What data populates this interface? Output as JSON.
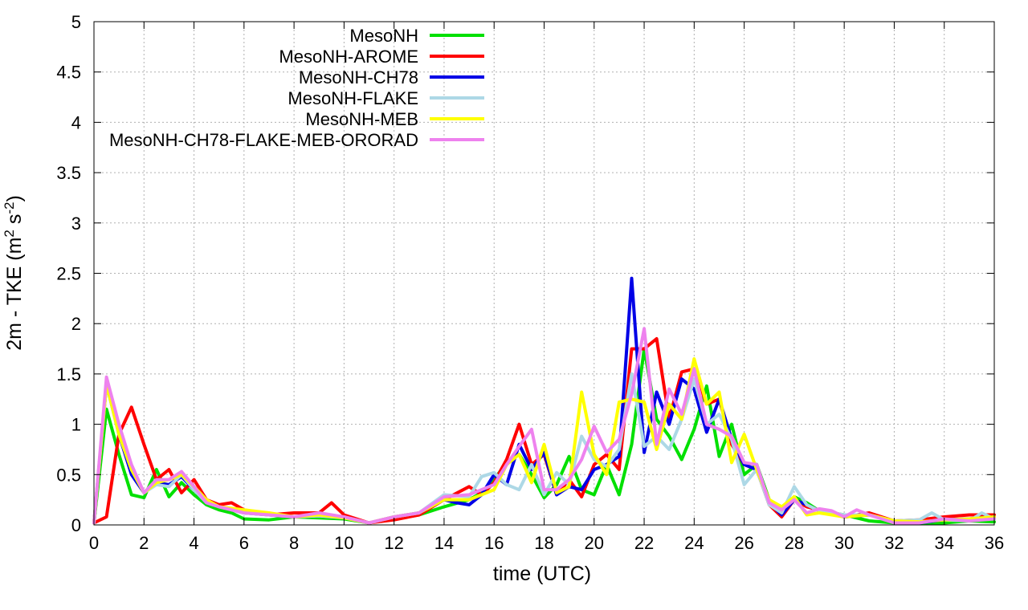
{
  "chart_data": {
    "type": "line",
    "xlabel": "time (UTC)",
    "ylabel": "2m - TKE (m² s⁻²)",
    "ylabel_parts": {
      "pre": "2m - TKE (m",
      "sup1": "2",
      "mid": " s",
      "sup2": "-2",
      "post": ")"
    },
    "xlim": [
      0,
      36
    ],
    "ylim": [
      0,
      5
    ],
    "x_ticks": [
      0,
      2,
      4,
      6,
      8,
      10,
      12,
      14,
      16,
      18,
      20,
      22,
      24,
      26,
      28,
      30,
      32,
      34,
      36
    ],
    "y_ticks": [
      0,
      0.5,
      1,
      1.5,
      2,
      2.5,
      3,
      3.5,
      4,
      4.5,
      5
    ],
    "y_tick_labels": [
      "0",
      "0.5",
      "1",
      "1.5",
      "2",
      "2.5",
      "3",
      "3.5",
      "4",
      "4.5",
      "5"
    ],
    "grid": true,
    "legend_position": "top-left-inside",
    "series": [
      {
        "name": "MesoNH",
        "color": "#00e000",
        "x": [
          0,
          0.5,
          1,
          1.5,
          2,
          2.5,
          3,
          3.5,
          4,
          4.5,
          5,
          5.5,
          6,
          7,
          8,
          9,
          10,
          11,
          12,
          13,
          14,
          15,
          15.5,
          16,
          16.5,
          17,
          17.5,
          18,
          18.5,
          19,
          19.5,
          20,
          20.5,
          21,
          21.5,
          22,
          22.5,
          23,
          23.5,
          24,
          24.5,
          25,
          25.5,
          26,
          26.5,
          27,
          27.5,
          28,
          28.5,
          29,
          30,
          31,
          32,
          33,
          34,
          35,
          36
        ],
        "y": [
          0.02,
          1.15,
          0.7,
          0.3,
          0.27,
          0.55,
          0.28,
          0.42,
          0.3,
          0.2,
          0.15,
          0.12,
          0.06,
          0.05,
          0.08,
          0.07,
          0.06,
          0.02,
          0.06,
          0.1,
          0.18,
          0.25,
          0.32,
          0.45,
          0.62,
          0.7,
          0.5,
          0.27,
          0.4,
          0.68,
          0.35,
          0.3,
          0.6,
          0.3,
          0.8,
          1.75,
          1.05,
          0.88,
          0.65,
          0.95,
          1.38,
          0.68,
          1.0,
          0.5,
          0.6,
          0.25,
          0.15,
          0.28,
          0.22,
          0.14,
          0.1,
          0.04,
          0.02,
          0.02,
          0.02,
          0.04,
          0.03
        ]
      },
      {
        "name": "MesoNH-AROME",
        "color": "#ff0000",
        "x": [
          0,
          0.5,
          1,
          1.5,
          2,
          2.5,
          3,
          3.5,
          4,
          4.5,
          5,
          5.5,
          6,
          7,
          8,
          9,
          9.5,
          10,
          11,
          12,
          13,
          14,
          15,
          15.5,
          16,
          16.5,
          17,
          17.5,
          18,
          18.5,
          19,
          19.5,
          20,
          20.5,
          21,
          21.5,
          22,
          22.5,
          23,
          23.5,
          24,
          24.5,
          25,
          25.5,
          26,
          26.5,
          27,
          27.5,
          28,
          28.5,
          29,
          30,
          31,
          32,
          33,
          34,
          35,
          36
        ],
        "y": [
          0.02,
          0.08,
          0.9,
          1.17,
          0.8,
          0.45,
          0.55,
          0.32,
          0.45,
          0.25,
          0.2,
          0.22,
          0.15,
          0.1,
          0.12,
          0.12,
          0.22,
          0.1,
          0.02,
          0.05,
          0.1,
          0.25,
          0.38,
          0.3,
          0.42,
          0.65,
          1.0,
          0.6,
          0.7,
          0.3,
          0.45,
          0.28,
          0.6,
          0.7,
          0.55,
          1.75,
          1.75,
          1.85,
          1.05,
          1.52,
          1.55,
          1.2,
          1.25,
          0.8,
          0.6,
          0.55,
          0.2,
          0.08,
          0.25,
          0.18,
          0.15,
          0.08,
          0.12,
          0.04,
          0.05,
          0.08,
          0.1,
          0.1
        ]
      },
      {
        "name": "MesoNH-CH78",
        "color": "#0000e6",
        "x": [
          0,
          0.5,
          1,
          1.5,
          2,
          2.5,
          3,
          3.5,
          4,
          4.5,
          5,
          6,
          7,
          8,
          9,
          10,
          11,
          12,
          13,
          14,
          14.5,
          15,
          15.5,
          16,
          16.5,
          17,
          17.5,
          18,
          18.5,
          19,
          19.5,
          20,
          20.5,
          21,
          21.5,
          22,
          22.5,
          23,
          23.5,
          24,
          24.5,
          25,
          25.5,
          26,
          26.5,
          27,
          27.5,
          28,
          28.5,
          29,
          30,
          31,
          32,
          33,
          34,
          35,
          36
        ],
        "y": [
          0.02,
          1.4,
          0.9,
          0.5,
          0.32,
          0.42,
          0.4,
          0.48,
          0.35,
          0.22,
          0.18,
          0.12,
          0.1,
          0.08,
          0.09,
          0.07,
          0.02,
          0.08,
          0.12,
          0.25,
          0.22,
          0.2,
          0.3,
          0.5,
          0.4,
          0.8,
          0.55,
          0.72,
          0.3,
          0.38,
          0.35,
          0.55,
          0.6,
          0.68,
          2.45,
          0.72,
          1.32,
          1.0,
          1.45,
          1.35,
          0.92,
          1.25,
          0.85,
          0.6,
          0.55,
          0.22,
          0.1,
          0.25,
          0.2,
          0.14,
          0.08,
          0.1,
          0.03,
          0.02,
          0.05,
          0.06,
          0.08
        ]
      },
      {
        "name": "MesoNH-FLAKE",
        "color": "#add8e6",
        "x": [
          0,
          0.5,
          1,
          1.5,
          2,
          2.5,
          3,
          3.5,
          4,
          4.5,
          5,
          6,
          7,
          8,
          9,
          10,
          11,
          12,
          13,
          14,
          15,
          15.5,
          16,
          16.5,
          17,
          17.5,
          18,
          18.5,
          19,
          19.5,
          20,
          20.5,
          21,
          21.5,
          22,
          22.5,
          23,
          23.5,
          24,
          24.5,
          25,
          25.5,
          26,
          26.5,
          27,
          27.5,
          28,
          28.5,
          29,
          30,
          31,
          32,
          33,
          33.5,
          34,
          35,
          35.5,
          36
        ],
        "y": [
          0.02,
          1.4,
          0.9,
          0.55,
          0.32,
          0.4,
          0.38,
          0.5,
          0.35,
          0.22,
          0.18,
          0.12,
          0.1,
          0.08,
          0.09,
          0.07,
          0.02,
          0.08,
          0.12,
          0.3,
          0.28,
          0.48,
          0.52,
          0.4,
          0.35,
          0.6,
          0.3,
          0.52,
          0.4,
          0.88,
          0.65,
          0.58,
          0.75,
          1.5,
          0.78,
          0.88,
          0.75,
          1.05,
          1.45,
          1.0,
          1.1,
          0.85,
          0.4,
          0.55,
          0.2,
          0.12,
          0.38,
          0.2,
          0.14,
          0.1,
          0.1,
          0.04,
          0.05,
          0.12,
          0.05,
          0.04,
          0.12,
          0.06
        ]
      },
      {
        "name": "MesoNH-MEB",
        "color": "#ffff00",
        "x": [
          0,
          0.5,
          1,
          1.5,
          2,
          2.5,
          3,
          3.5,
          4,
          4.5,
          5,
          6,
          7,
          8,
          9,
          10,
          11,
          12,
          13,
          14,
          15,
          16,
          16.5,
          17,
          17.5,
          18,
          18.5,
          19,
          19.5,
          20,
          20.5,
          21,
          21.5,
          22,
          22.5,
          23,
          23.5,
          24,
          24.5,
          25,
          25.5,
          26,
          26.5,
          27,
          27.5,
          28,
          28.5,
          29,
          30,
          31,
          32,
          33,
          34,
          35,
          36
        ],
        "y": [
          0.02,
          1.4,
          0.9,
          0.55,
          0.32,
          0.42,
          0.45,
          0.5,
          0.38,
          0.25,
          0.18,
          0.15,
          0.12,
          0.08,
          0.1,
          0.07,
          0.02,
          0.08,
          0.12,
          0.25,
          0.25,
          0.35,
          0.6,
          0.7,
          0.42,
          0.8,
          0.32,
          0.38,
          1.32,
          0.7,
          0.5,
          1.22,
          1.25,
          1.22,
          0.75,
          1.2,
          1.05,
          1.65,
          1.2,
          1.32,
          0.62,
          0.9,
          0.55,
          0.25,
          0.18,
          0.28,
          0.1,
          0.12,
          0.08,
          0.1,
          0.04,
          0.03,
          0.05,
          0.06,
          0.08
        ]
      },
      {
        "name": "MesoNH-CH78-FLAKE-MEB-ORORAD",
        "color": "#ee82ee",
        "x": [
          0,
          0.5,
          1,
          1.5,
          2,
          2.5,
          3,
          3.5,
          4,
          4.5,
          5,
          6,
          7,
          8,
          9,
          10,
          11,
          12,
          13,
          14,
          15,
          16,
          16.5,
          17,
          17.5,
          18,
          18.5,
          19,
          19.5,
          20,
          20.5,
          21,
          21.5,
          22,
          22.5,
          23,
          23.5,
          24,
          24.5,
          25,
          25.5,
          26,
          26.5,
          27,
          27.5,
          28,
          28.5,
          29,
          29.5,
          30,
          30.5,
          31,
          32,
          33,
          34,
          35,
          36
        ],
        "y": [
          0.02,
          1.47,
          1.0,
          0.6,
          0.32,
          0.45,
          0.45,
          0.53,
          0.38,
          0.22,
          0.18,
          0.12,
          0.1,
          0.08,
          0.12,
          0.08,
          0.02,
          0.08,
          0.12,
          0.28,
          0.3,
          0.4,
          0.6,
          0.78,
          0.95,
          0.35,
          0.35,
          0.45,
          0.65,
          0.98,
          0.72,
          0.85,
          1.3,
          1.95,
          0.8,
          1.35,
          1.1,
          1.55,
          1.0,
          0.95,
          0.88,
          0.62,
          0.6,
          0.22,
          0.15,
          0.25,
          0.12,
          0.16,
          0.14,
          0.08,
          0.15,
          0.1,
          0.02,
          0.02,
          0.06,
          0.04,
          0.06
        ]
      }
    ]
  }
}
